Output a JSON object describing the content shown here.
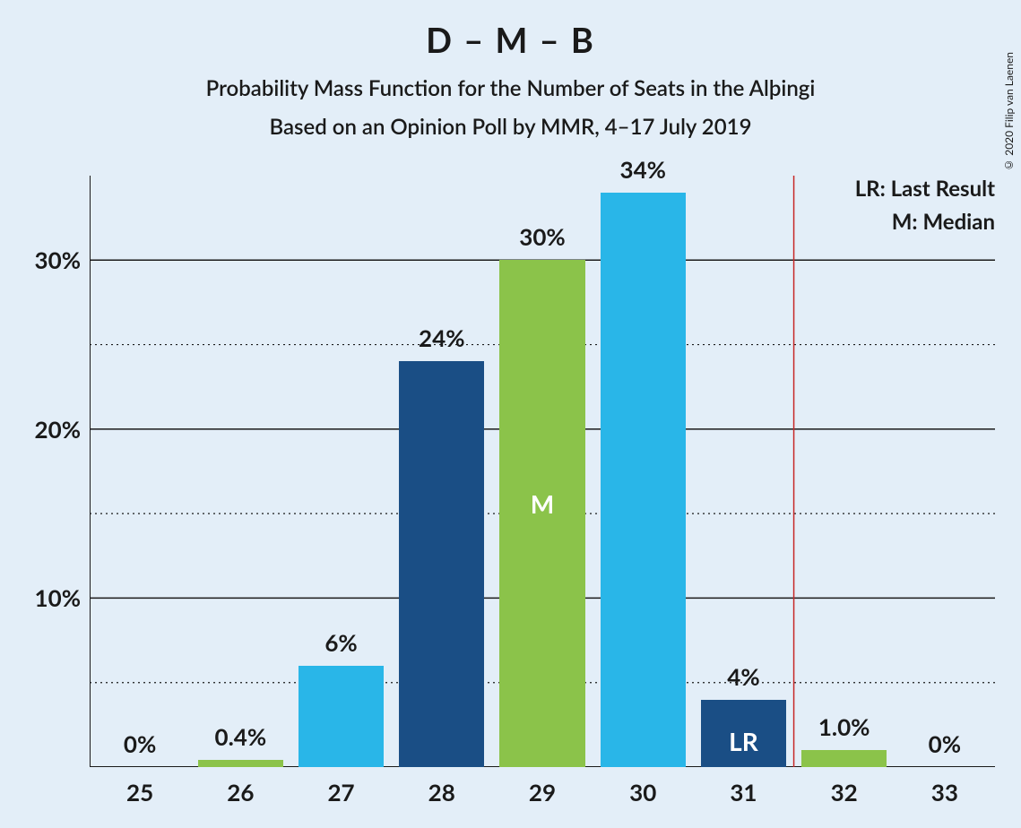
{
  "title": "D – M – B",
  "subtitle1": "Probability Mass Function for the Number of Seats in the Alþingi",
  "subtitle2": "Based on an Opinion Poll by MMR, 4–17 July 2019",
  "copyright": "© 2020 Filip van Laenen",
  "legend": {
    "lr": "LR: Last Result",
    "m": "M: Median"
  },
  "chart": {
    "type": "bar",
    "background_color": "#e3eef8",
    "text_color": "#1a1a1a",
    "title_fontsize": 38,
    "subtitle_fontsize": 24,
    "axis_label_fontsize": 26,
    "bar_label_fontsize": 26,
    "ylim": [
      0,
      35
    ],
    "y_major_ticks": [
      10,
      20,
      30
    ],
    "y_minor_ticks": [
      5,
      15,
      25
    ],
    "y_tick_labels": [
      "10%",
      "20%",
      "30%"
    ],
    "categories": [
      "25",
      "26",
      "27",
      "28",
      "29",
      "30",
      "31",
      "32",
      "33"
    ],
    "values": [
      0,
      0.4,
      6,
      24,
      30,
      34,
      4,
      1.0,
      0
    ],
    "value_labels": [
      "0%",
      "0.4%",
      "6%",
      "24%",
      "30%",
      "34%",
      "4%",
      "1.0%",
      "0%"
    ],
    "bar_colors": [
      "#1a4e85",
      "#8bc34a",
      "#29b6e8",
      "#1a4e85",
      "#8bc34a",
      "#29b6e8",
      "#1a4e85",
      "#8bc34a",
      "#29b6e8"
    ],
    "median_index": 4,
    "median_label": "M",
    "lr_index": 6,
    "lr_label": "LR",
    "lr_line_x_between": [
      6,
      7
    ],
    "lr_line_color": "#c62828",
    "bar_width_ratio": 0.85,
    "grid_color": "#1a1a1a"
  }
}
